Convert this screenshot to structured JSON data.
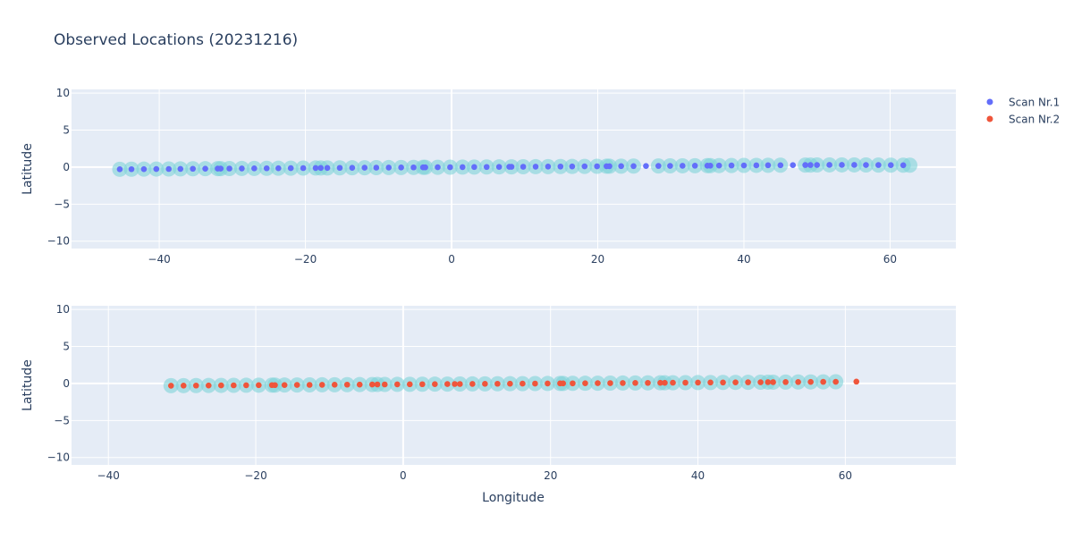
{
  "chart_data": {
    "type": "scatter",
    "title": "Observed Locations (20231216)",
    "xlabel": "Longitude",
    "ylabel": "Latitude",
    "grid": true,
    "legend_placement": "top-right",
    "colors": {
      "plot_bg": "#e5ecf6",
      "grid": "#ffffff",
      "marker_halo": "#7fd4d8",
      "scan1": "#636efa",
      "scan2": "#ef553b",
      "text": "#2a3f5f"
    },
    "legend": [
      {
        "name": "Scan Nr.1",
        "color": "#636efa"
      },
      {
        "name": "Scan Nr.2",
        "color": "#ef553b"
      }
    ],
    "subplots": [
      {
        "series_name": "Scan Nr.1",
        "color": "#636efa",
        "xlim": [
          -52,
          69
        ],
        "ylim": [
          -11,
          10.5
        ],
        "xticks": [
          -40,
          -20,
          0,
          20,
          40,
          60
        ],
        "yticks": [
          -10,
          -5,
          0,
          5,
          10
        ],
        "x": [
          -45.4,
          -43.8,
          -42.1,
          -40.4,
          -38.7,
          -37.1,
          -35.4,
          -33.7,
          -32.0,
          -31.6,
          -30.4,
          -28.7,
          -27.0,
          -25.3,
          -23.7,
          -22.0,
          -20.3,
          -18.6,
          -17.9,
          -17.0,
          -15.3,
          -13.6,
          -11.9,
          -10.3,
          -8.6,
          -6.9,
          -5.2,
          -3.9,
          -3.6,
          -1.9,
          -0.2,
          1.5,
          3.1,
          4.8,
          6.5,
          7.9,
          8.2,
          9.8,
          11.5,
          13.2,
          14.9,
          16.5,
          18.2,
          19.9,
          21.2,
          21.6,
          23.2,
          24.9,
          26.6,
          28.3,
          29.9,
          31.6,
          33.3,
          35.0,
          35.4,
          36.6,
          38.3,
          40.0,
          41.7,
          43.3,
          45.0,
          46.7,
          48.4,
          49.1,
          50.0,
          51.7,
          53.4,
          55.1,
          56.7,
          58.4,
          60.1,
          61.8
        ],
        "y": [
          -0.29,
          -0.28,
          -0.27,
          -0.26,
          -0.25,
          -0.24,
          -0.22,
          -0.21,
          -0.2,
          -0.2,
          -0.19,
          -0.18,
          -0.17,
          -0.16,
          -0.15,
          -0.14,
          -0.13,
          -0.12,
          -0.11,
          -0.11,
          -0.1,
          -0.09,
          -0.08,
          -0.07,
          -0.06,
          -0.05,
          -0.04,
          -0.03,
          -0.03,
          -0.02,
          -0.01,
          0.0,
          0.01,
          0.02,
          0.03,
          0.04,
          0.04,
          0.05,
          0.06,
          0.07,
          0.08,
          0.09,
          0.1,
          0.11,
          0.12,
          0.12,
          0.13,
          0.14,
          0.15,
          0.16,
          0.17,
          0.18,
          0.19,
          0.2,
          0.2,
          0.21,
          0.22,
          0.23,
          0.24,
          0.25,
          0.26,
          0.27,
          0.28,
          0.28,
          0.29,
          0.3,
          0.3,
          0.3,
          0.29,
          0.28,
          0.27,
          0.26
        ],
        "halo_x": [
          -45.4,
          -43.8,
          -42.1,
          -40.4,
          -38.7,
          -37.1,
          -35.4,
          -33.7,
          -32.0,
          -31.6,
          -30.4,
          -28.7,
          -27.0,
          -25.3,
          -23.7,
          -22.0,
          -20.3,
          -18.6,
          -17.9,
          -17.0,
          -15.3,
          -13.6,
          -11.9,
          -10.3,
          -8.6,
          -6.9,
          -5.2,
          -3.9,
          -3.6,
          -1.9,
          -0.2,
          1.5,
          3.1,
          4.8,
          6.5,
          8.2,
          9.8,
          11.5,
          13.2,
          14.9,
          16.5,
          18.2,
          19.9,
          21.2,
          21.6,
          23.2,
          24.9,
          28.3,
          29.9,
          31.6,
          33.3,
          35.0,
          35.4,
          36.6,
          38.3,
          40.0,
          41.7,
          43.3,
          45.0,
          48.4,
          49.1,
          50.0,
          51.7,
          53.4,
          55.1,
          56.7,
          58.4,
          60.1,
          61.8,
          62.7
        ]
      },
      {
        "series_name": "Scan Nr.2",
        "color": "#ef553b",
        "xlim": [
          -45,
          75
        ],
        "ylim": [
          -11,
          10.5
        ],
        "xticks": [
          -40,
          -20,
          0,
          20,
          40,
          60
        ],
        "yticks": [
          -10,
          -5,
          0,
          5,
          10
        ],
        "x": [
          -31.5,
          -29.8,
          -28.1,
          -26.4,
          -24.7,
          -23.0,
          -21.3,
          -19.6,
          -17.8,
          -17.4,
          -16.1,
          -14.4,
          -12.7,
          -11.0,
          -9.3,
          -7.6,
          -5.9,
          -4.2,
          -3.5,
          -2.5,
          -0.8,
          0.9,
          2.6,
          4.3,
          6.0,
          7.0,
          7.7,
          9.4,
          11.1,
          12.8,
          14.5,
          16.2,
          17.9,
          19.6,
          21.3,
          21.7,
          23.0,
          24.7,
          26.4,
          28.1,
          29.8,
          31.5,
          33.2,
          34.9,
          35.5,
          36.6,
          38.3,
          40.0,
          41.7,
          43.4,
          45.1,
          46.8,
          48.5,
          49.5,
          50.2,
          51.9,
          53.6,
          55.3,
          57.0,
          58.7,
          61.5
        ],
        "y": [
          -0.3,
          -0.29,
          -0.28,
          -0.27,
          -0.26,
          -0.25,
          -0.24,
          -0.23,
          -0.22,
          -0.22,
          -0.21,
          -0.2,
          -0.19,
          -0.18,
          -0.17,
          -0.16,
          -0.15,
          -0.14,
          -0.13,
          -0.13,
          -0.12,
          -0.11,
          -0.1,
          -0.09,
          -0.08,
          -0.07,
          -0.07,
          -0.06,
          -0.05,
          -0.04,
          -0.03,
          -0.02,
          -0.01,
          0.0,
          0.01,
          0.01,
          0.02,
          0.03,
          0.04,
          0.05,
          0.06,
          0.07,
          0.08,
          0.09,
          0.09,
          0.1,
          0.11,
          0.12,
          0.13,
          0.14,
          0.15,
          0.16,
          0.17,
          0.18,
          0.18,
          0.19,
          0.2,
          0.21,
          0.22,
          0.23,
          0.25
        ],
        "halo_x": [
          -31.5,
          -29.8,
          -28.1,
          -26.4,
          -24.7,
          -23.0,
          -21.3,
          -19.6,
          -17.8,
          -17.4,
          -16.1,
          -14.4,
          -12.7,
          -11.0,
          -9.3,
          -7.6,
          -5.9,
          -4.2,
          -3.5,
          -2.5,
          -0.8,
          0.9,
          2.6,
          4.3,
          6.0,
          7.7,
          9.4,
          11.1,
          12.8,
          14.5,
          16.2,
          17.9,
          19.6,
          21.3,
          21.7,
          23.0,
          24.7,
          26.4,
          28.1,
          29.8,
          31.5,
          33.2,
          34.9,
          35.5,
          36.6,
          38.3,
          40.0,
          41.7,
          43.4,
          45.1,
          46.8,
          48.5,
          49.5,
          50.2,
          51.9,
          53.6,
          55.3,
          57.0,
          58.7
        ]
      }
    ]
  }
}
